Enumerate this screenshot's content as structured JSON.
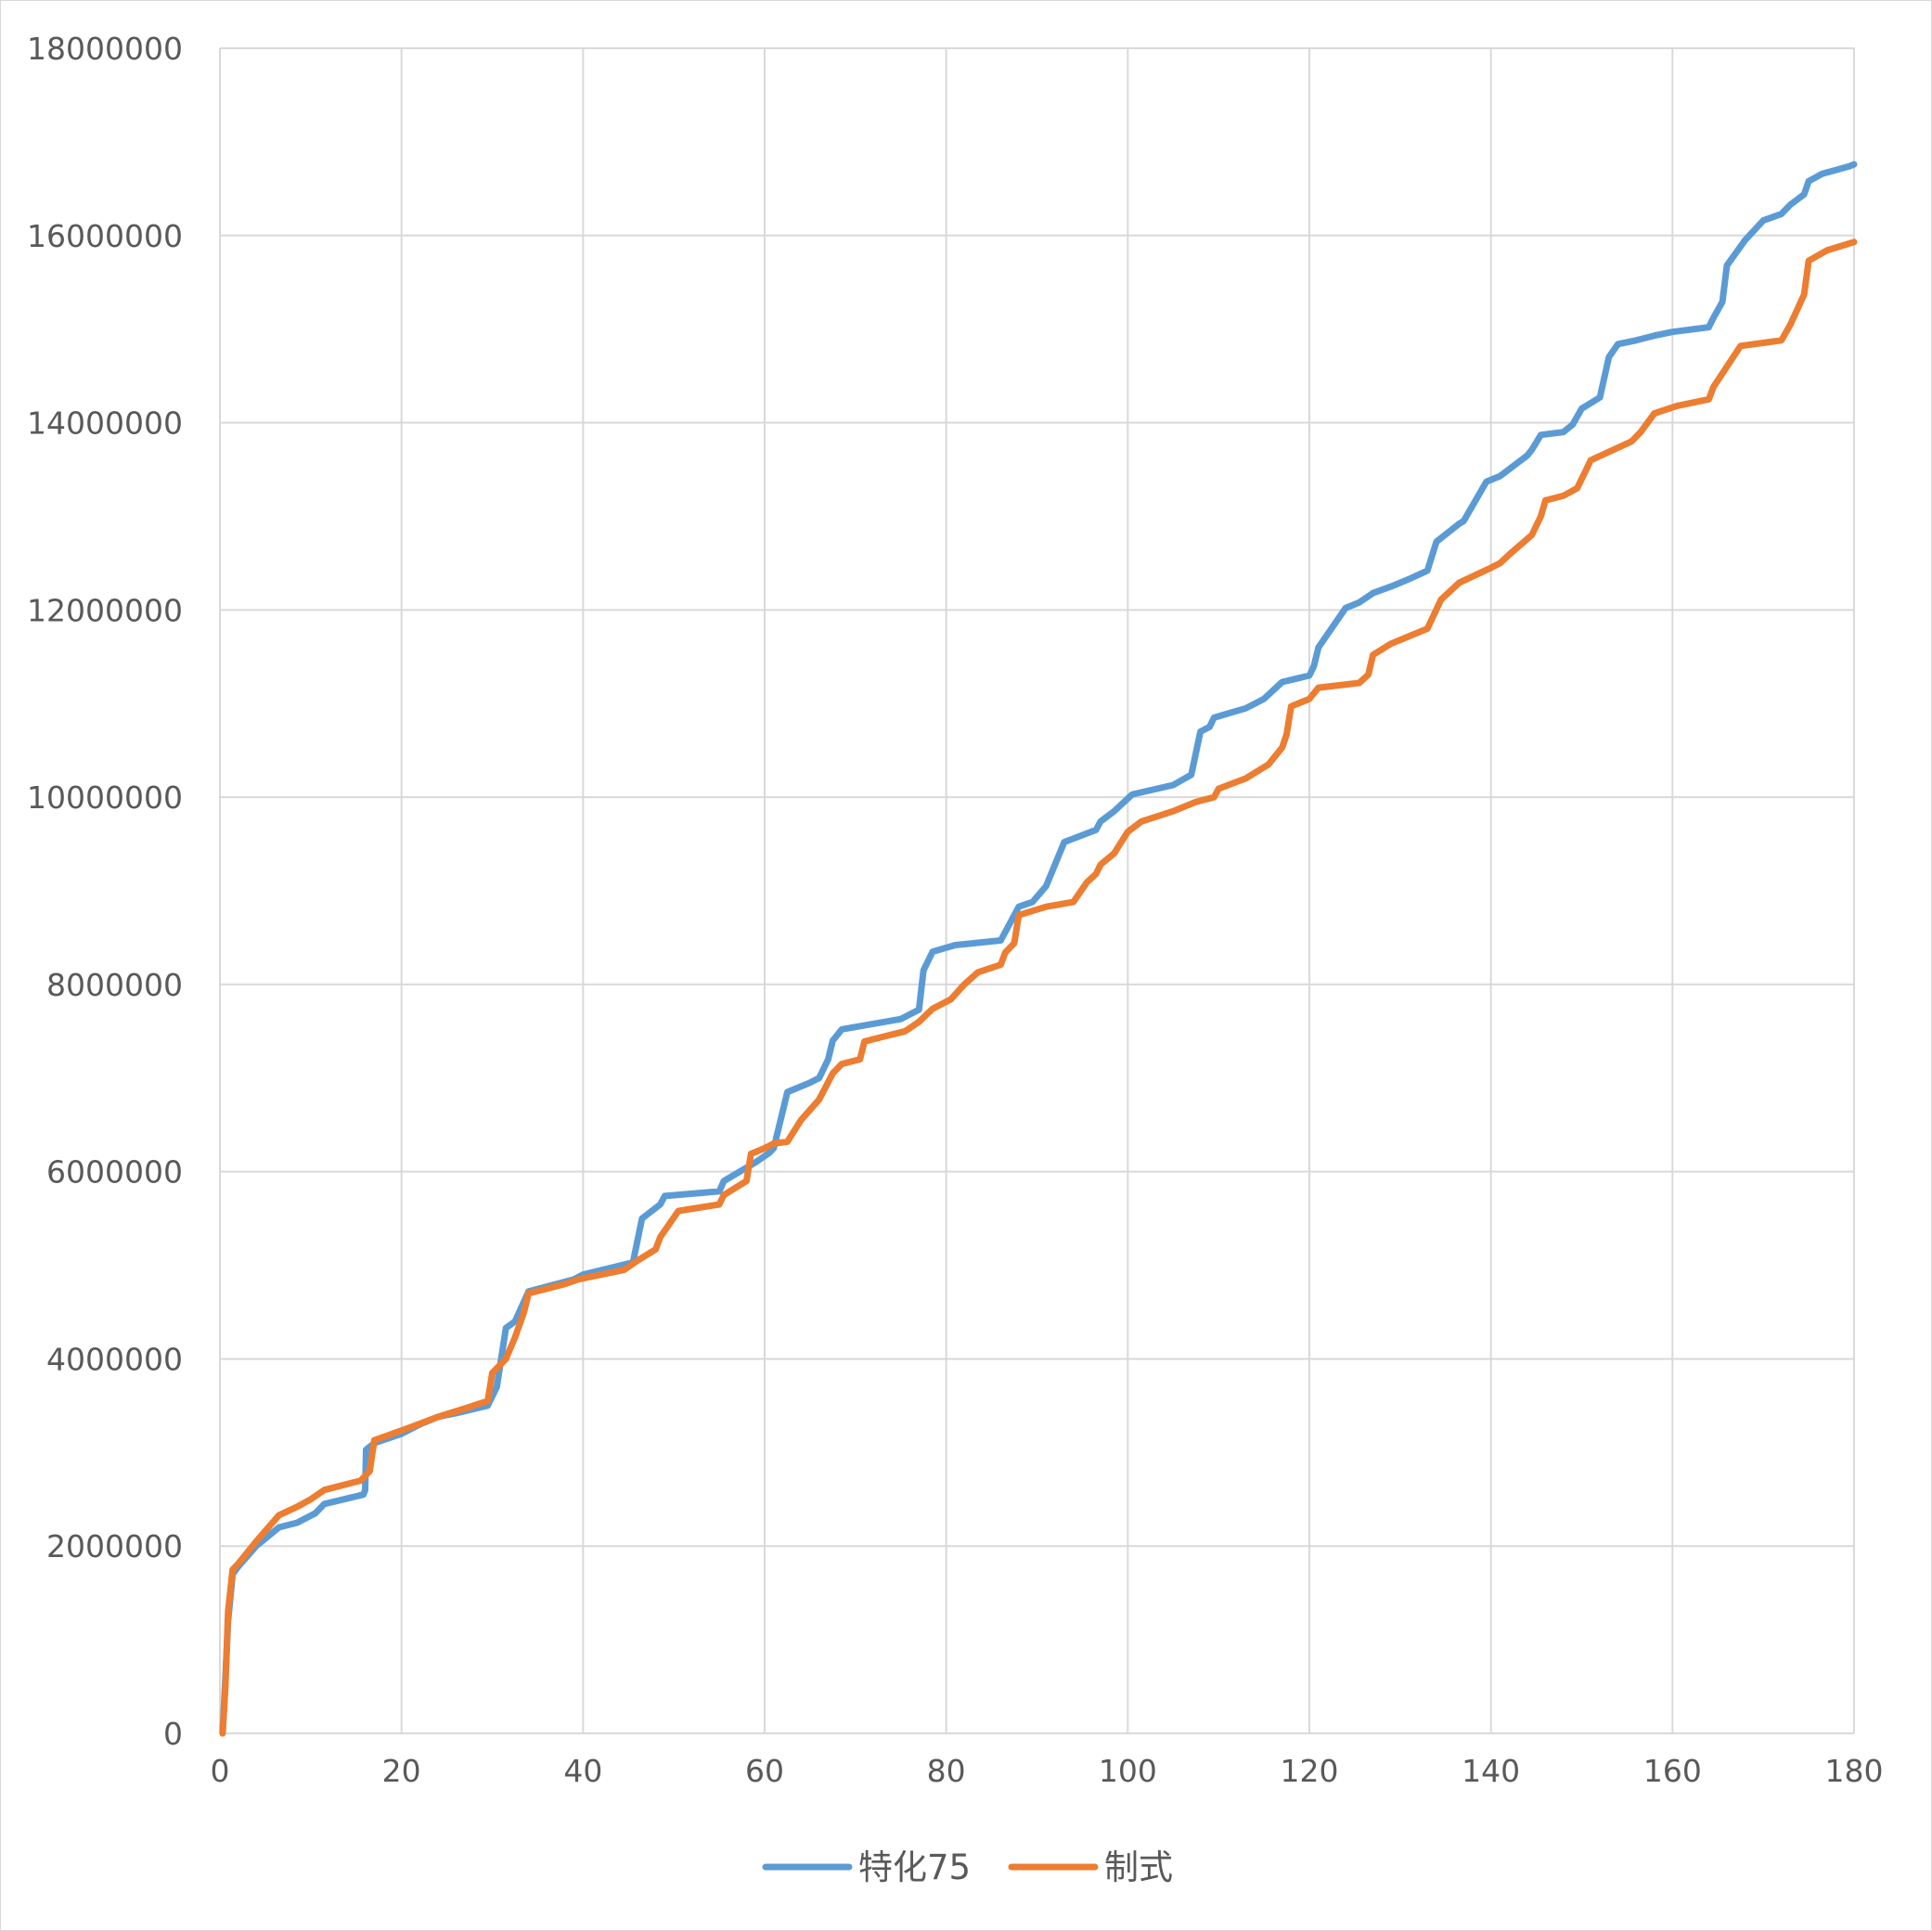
{
  "chart_data": {
    "type": "line",
    "title": "",
    "xlabel": "",
    "ylabel": "",
    "xlim": [
      0,
      180
    ],
    "ylim": [
      0,
      18000000
    ],
    "x_ticks": [
      0,
      20,
      40,
      60,
      80,
      100,
      120,
      140,
      160,
      180
    ],
    "y_ticks": [
      0,
      2000000,
      4000000,
      6000000,
      8000000,
      10000000,
      12000000,
      14000000,
      16000000,
      18000000
    ],
    "x_tick_labels": [
      "0",
      "20",
      "40",
      "60",
      "80",
      "100",
      "120",
      "140",
      "160",
      "180"
    ],
    "y_tick_labels": [
      "0",
      "2000000",
      "4000000",
      "6000000",
      "8000000",
      "10000000",
      "12000000",
      "14000000",
      "16000000",
      "18000000"
    ],
    "grid": true,
    "legend_position": "bottom",
    "series": [
      {
        "name": "特化75",
        "color": "#5b9bd5",
        "points": [
          [
            0.3,
            0
          ],
          [
            0.6,
            600000
          ],
          [
            0.9,
            1200000
          ],
          [
            1.4,
            1700000
          ],
          [
            2,
            1780000
          ],
          [
            4,
            2000000
          ],
          [
            6.5,
            2200000
          ],
          [
            8.5,
            2250000
          ],
          [
            10.5,
            2350000
          ],
          [
            11.5,
            2450000
          ],
          [
            15.8,
            2550000
          ],
          [
            16,
            2600000
          ],
          [
            16.1,
            3030000
          ],
          [
            17,
            3100000
          ],
          [
            20,
            3200000
          ],
          [
            22,
            3300000
          ],
          [
            24,
            3380000
          ],
          [
            26,
            3420000
          ],
          [
            29.5,
            3500000
          ],
          [
            30.5,
            3700000
          ],
          [
            31.5,
            4330000
          ],
          [
            32.5,
            4400000
          ],
          [
            34,
            4720000
          ],
          [
            39,
            4850000
          ],
          [
            40,
            4900000
          ],
          [
            45.5,
            5030000
          ],
          [
            46.5,
            5500000
          ],
          [
            48.5,
            5650000
          ],
          [
            49,
            5740000
          ],
          [
            55,
            5790000
          ],
          [
            55.5,
            5900000
          ],
          [
            59,
            6100000
          ],
          [
            60.5,
            6200000
          ],
          [
            61,
            6250000
          ],
          [
            62.5,
            6850000
          ],
          [
            65,
            6950000
          ],
          [
            66,
            7000000
          ],
          [
            67,
            7200000
          ],
          [
            67.5,
            7400000
          ],
          [
            68.5,
            7520000
          ],
          [
            75,
            7630000
          ],
          [
            77,
            7730000
          ],
          [
            77.5,
            8150000
          ],
          [
            78.5,
            8350000
          ],
          [
            81,
            8420000
          ],
          [
            86,
            8470000
          ],
          [
            87,
            8650000
          ],
          [
            88,
            8830000
          ],
          [
            89.5,
            8880000
          ],
          [
            91,
            9050000
          ],
          [
            93,
            9520000
          ],
          [
            96.5,
            9650000
          ],
          [
            97,
            9740000
          ],
          [
            98.5,
            9850000
          ],
          [
            100.5,
            10030000
          ],
          [
            105,
            10130000
          ],
          [
            107,
            10240000
          ],
          [
            108,
            10700000
          ],
          [
            109,
            10750000
          ],
          [
            109.5,
            10850000
          ],
          [
            113,
            10950000
          ],
          [
            115,
            11050000
          ],
          [
            117,
            11230000
          ],
          [
            120,
            11300000
          ],
          [
            120.5,
            11400000
          ],
          [
            121,
            11600000
          ],
          [
            124,
            12020000
          ],
          [
            125.5,
            12080000
          ],
          [
            127,
            12180000
          ],
          [
            129,
            12250000
          ],
          [
            131,
            12330000
          ],
          [
            133,
            12420000
          ],
          [
            134,
            12730000
          ],
          [
            136.5,
            12920000
          ],
          [
            137,
            12950000
          ],
          [
            139.5,
            13370000
          ],
          [
            141,
            13430000
          ],
          [
            144,
            13650000
          ],
          [
            144.5,
            13710000
          ],
          [
            145.5,
            13870000
          ],
          [
            148,
            13900000
          ],
          [
            149,
            13980000
          ],
          [
            150,
            14150000
          ],
          [
            152,
            14270000
          ],
          [
            153,
            14700000
          ],
          [
            154,
            14840000
          ],
          [
            156,
            14880000
          ],
          [
            158,
            14930000
          ],
          [
            160,
            14970000
          ],
          [
            164,
            15020000
          ],
          [
            164.5,
            15120000
          ],
          [
            165.5,
            15290000
          ],
          [
            166,
            15680000
          ],
          [
            168,
            15950000
          ],
          [
            170,
            16160000
          ],
          [
            172,
            16230000
          ],
          [
            173,
            16330000
          ],
          [
            174.5,
            16440000
          ],
          [
            175,
            16580000
          ],
          [
            176.5,
            16660000
          ],
          [
            178,
            16700000
          ],
          [
            179.5,
            16740000
          ],
          [
            180,
            16760000
          ]
        ]
      },
      {
        "name": "制式",
        "color": "#ed7d31",
        "points": [
          [
            0.3,
            0
          ],
          [
            0.6,
            500000
          ],
          [
            0.9,
            1300000
          ],
          [
            1.4,
            1750000
          ],
          [
            2,
            1810000
          ],
          [
            4,
            2050000
          ],
          [
            6.5,
            2330000
          ],
          [
            8.5,
            2420000
          ],
          [
            10,
            2500000
          ],
          [
            11.5,
            2600000
          ],
          [
            15.5,
            2700000
          ],
          [
            16.5,
            2800000
          ],
          [
            17,
            3130000
          ],
          [
            19,
            3200000
          ],
          [
            21,
            3270000
          ],
          [
            24,
            3380000
          ],
          [
            27,
            3470000
          ],
          [
            29.5,
            3550000
          ],
          [
            30,
            3850000
          ],
          [
            31.5,
            4000000
          ],
          [
            32.5,
            4230000
          ],
          [
            33.5,
            4500000
          ],
          [
            34,
            4700000
          ],
          [
            38,
            4800000
          ],
          [
            39.5,
            4850000
          ],
          [
            44.5,
            4950000
          ],
          [
            46,
            5050000
          ],
          [
            48,
            5170000
          ],
          [
            48.5,
            5300000
          ],
          [
            50.5,
            5580000
          ],
          [
            55,
            5650000
          ],
          [
            55.5,
            5750000
          ],
          [
            58,
            5900000
          ],
          [
            58.5,
            6190000
          ],
          [
            60,
            6250000
          ],
          [
            61,
            6300000
          ],
          [
            62.5,
            6320000
          ],
          [
            64,
            6550000
          ],
          [
            66,
            6770000
          ],
          [
            67.5,
            7050000
          ],
          [
            68.5,
            7150000
          ],
          [
            70.5,
            7200000
          ],
          [
            71,
            7390000
          ],
          [
            73,
            7440000
          ],
          [
            75.5,
            7500000
          ],
          [
            77,
            7600000
          ],
          [
            78.5,
            7740000
          ],
          [
            80.5,
            7840000
          ],
          [
            82,
            8000000
          ],
          [
            83.5,
            8130000
          ],
          [
            86,
            8210000
          ],
          [
            86.5,
            8340000
          ],
          [
            87.5,
            8440000
          ],
          [
            88,
            8740000
          ],
          [
            91,
            8830000
          ],
          [
            94,
            8880000
          ],
          [
            95.5,
            9090000
          ],
          [
            96.5,
            9180000
          ],
          [
            97,
            9280000
          ],
          [
            98.5,
            9400000
          ],
          [
            100,
            9630000
          ],
          [
            101.5,
            9740000
          ],
          [
            105,
            9850000
          ],
          [
            107.5,
            9950000
          ],
          [
            109.5,
            10000000
          ],
          [
            110,
            10090000
          ],
          [
            113,
            10200000
          ],
          [
            115.5,
            10350000
          ],
          [
            117,
            10530000
          ],
          [
            117.5,
            10670000
          ],
          [
            118,
            10970000
          ],
          [
            120,
            11050000
          ],
          [
            121,
            11170000
          ],
          [
            125.5,
            11220000
          ],
          [
            126.5,
            11310000
          ],
          [
            127,
            11520000
          ],
          [
            129,
            11640000
          ],
          [
            131,
            11720000
          ],
          [
            133,
            11800000
          ],
          [
            134.5,
            12110000
          ],
          [
            136.5,
            12290000
          ],
          [
            140,
            12450000
          ],
          [
            141,
            12500000
          ],
          [
            142,
            12590000
          ],
          [
            144.5,
            12800000
          ],
          [
            145.5,
            13000000
          ],
          [
            146,
            13170000
          ],
          [
            148,
            13220000
          ],
          [
            149.5,
            13300000
          ],
          [
            151,
            13600000
          ],
          [
            155.5,
            13800000
          ],
          [
            156.5,
            13900000
          ],
          [
            158,
            14100000
          ],
          [
            160.5,
            14180000
          ],
          [
            164,
            14250000
          ],
          [
            164.5,
            14380000
          ],
          [
            167.5,
            14820000
          ],
          [
            172,
            14880000
          ],
          [
            173,
            15050000
          ],
          [
            174.5,
            15370000
          ],
          [
            175,
            15730000
          ],
          [
            177,
            15840000
          ],
          [
            180,
            15930000
          ]
        ]
      }
    ]
  }
}
